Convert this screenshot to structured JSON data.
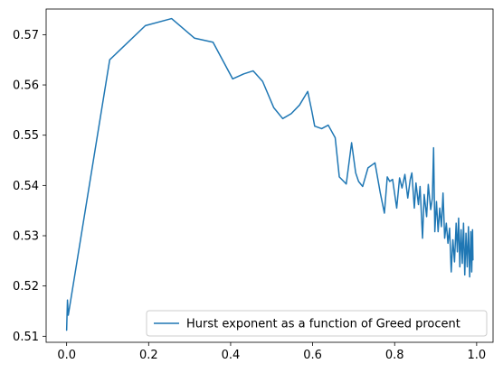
{
  "chart_data": {
    "type": "line",
    "title": "",
    "xlabel": "",
    "ylabel": "",
    "xlim": [
      -0.05,
      1.04
    ],
    "ylim": [
      0.5088,
      0.5751
    ],
    "xticks": [
      0.0,
      0.2,
      0.4,
      0.6,
      0.8,
      1.0
    ],
    "xtick_labels": [
      "0.0",
      "0.2",
      "0.4",
      "0.6",
      "0.8",
      "1.0"
    ],
    "yticks": [
      0.51,
      0.52,
      0.53,
      0.54,
      0.55,
      0.56,
      0.57
    ],
    "ytick_labels": [
      "0.51",
      "0.52",
      "0.53",
      "0.54",
      "0.55",
      "0.56",
      "0.57"
    ],
    "grid": false,
    "legend_position": "lower-right",
    "series": [
      {
        "name": "Hurst exponent as a function of Greed procent",
        "color": "#1f77b4",
        "x": [
          0.0,
          0.002,
          0.004,
          0.006,
          0.105,
          0.192,
          0.256,
          0.312,
          0.357,
          0.405,
          0.432,
          0.455,
          0.478,
          0.505,
          0.527,
          0.548,
          0.568,
          0.588,
          0.598,
          0.605,
          0.622,
          0.638,
          0.655,
          0.665,
          0.682,
          0.695,
          0.705,
          0.712,
          0.722,
          0.735,
          0.752,
          0.765,
          0.775,
          0.782,
          0.788,
          0.795,
          0.805,
          0.812,
          0.818,
          0.825,
          0.832,
          0.838,
          0.842,
          0.848,
          0.852,
          0.858,
          0.862,
          0.868,
          0.872,
          0.878,
          0.882,
          0.888,
          0.892,
          0.895,
          0.898,
          0.902,
          0.906,
          0.91,
          0.914,
          0.918,
          0.922,
          0.926,
          0.93,
          0.934,
          0.938,
          0.942,
          0.946,
          0.95,
          0.953,
          0.956,
          0.959,
          0.962,
          0.965,
          0.968,
          0.971,
          0.974,
          0.977,
          0.98,
          0.983,
          0.986,
          0.988,
          0.99,
          0.991
        ],
        "y": [
          0.5112,
          0.5172,
          0.5142,
          0.5152,
          0.565,
          0.5718,
          0.5732,
          0.5693,
          0.5685,
          0.5612,
          0.5622,
          0.5628,
          0.5607,
          0.5555,
          0.5533,
          0.5543,
          0.556,
          0.5587,
          0.5548,
          0.5518,
          0.5513,
          0.552,
          0.5495,
          0.5417,
          0.5403,
          0.5485,
          0.5425,
          0.5408,
          0.5398,
          0.5435,
          0.5445,
          0.5385,
          0.5345,
          0.5417,
          0.5408,
          0.5412,
          0.5355,
          0.5415,
          0.5395,
          0.5422,
          0.5375,
          0.5412,
          0.5425,
          0.5355,
          0.5405,
          0.5362,
          0.5398,
          0.5295,
          0.5382,
          0.5338,
          0.5402,
          0.5352,
          0.5375,
          0.5475,
          0.5308,
          0.5368,
          0.5308,
          0.5355,
          0.5318,
          0.5385,
          0.5295,
          0.5325,
          0.5285,
          0.5315,
          0.5228,
          0.5292,
          0.5248,
          0.5325,
          0.5268,
          0.5335,
          0.5238,
          0.5312,
          0.5245,
          0.5325,
          0.5222,
          0.5305,
          0.5238,
          0.5318,
          0.5218,
          0.5308,
          0.5228,
          0.5312,
          0.5252
        ]
      }
    ]
  }
}
